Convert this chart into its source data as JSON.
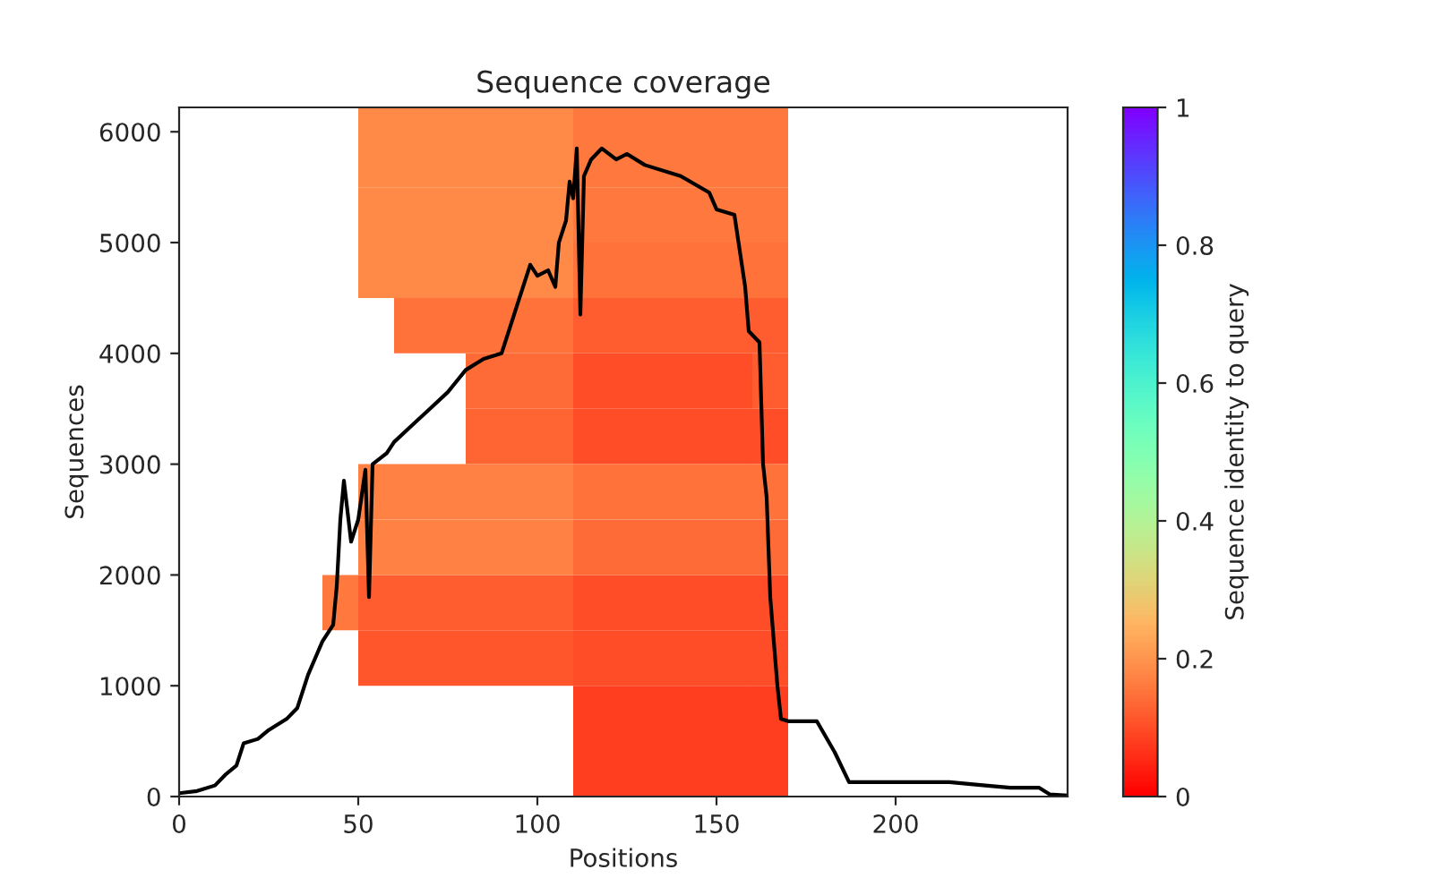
{
  "chart_data": {
    "type": "heatmap",
    "title": "Sequence coverage",
    "xlabel": "Positions",
    "ylabel": "Sequences",
    "clabel": "Sequence identity to query",
    "x": [
      5,
      15,
      25,
      35,
      45,
      55,
      65,
      75,
      85,
      95,
      105,
      115,
      125,
      135,
      145,
      155,
      165,
      175,
      185,
      195,
      205,
      215,
      225,
      235,
      245
    ],
    "y": [
      6110,
      5750,
      5250,
      4750,
      4250,
      3750,
      3250,
      2750,
      2250,
      1750,
      1250,
      750,
      250
    ],
    "cells": [
      [
        null,
        null,
        null,
        null,
        null,
        0.18,
        0.18,
        0.18,
        0.18,
        0.18,
        0.18,
        0.16,
        0.16,
        0.16,
        0.16,
        0.16,
        0.16,
        null,
        null,
        null,
        null,
        null,
        null,
        null,
        null
      ],
      [
        null,
        null,
        null,
        null,
        null,
        0.18,
        0.18,
        0.18,
        0.18,
        0.18,
        0.18,
        0.16,
        0.16,
        0.16,
        0.16,
        0.16,
        0.16,
        null,
        null,
        null,
        null,
        null,
        null,
        null,
        null
      ],
      [
        null,
        null,
        null,
        null,
        null,
        0.18,
        0.18,
        0.18,
        0.18,
        0.18,
        0.18,
        0.16,
        0.16,
        0.16,
        0.16,
        0.16,
        0.16,
        null,
        null,
        null,
        null,
        null,
        null,
        null,
        null
      ],
      [
        null,
        null,
        null,
        null,
        null,
        0.18,
        0.18,
        0.18,
        0.18,
        0.18,
        0.18,
        0.15,
        0.15,
        0.15,
        0.15,
        0.15,
        0.15,
        null,
        null,
        null,
        null,
        null,
        null,
        null,
        null
      ],
      [
        null,
        null,
        null,
        null,
        null,
        null,
        0.15,
        0.15,
        0.15,
        0.15,
        0.15,
        0.12,
        0.12,
        0.12,
        0.12,
        0.12,
        0.12,
        null,
        null,
        null,
        null,
        null,
        null,
        null,
        null
      ],
      [
        null,
        null,
        null,
        null,
        null,
        null,
        null,
        null,
        0.14,
        0.14,
        0.14,
        0.1,
        0.1,
        0.1,
        0.1,
        0.1,
        0.12,
        null,
        null,
        null,
        null,
        null,
        null,
        null,
        null
      ],
      [
        null,
        null,
        null,
        null,
        null,
        null,
        null,
        null,
        0.13,
        0.13,
        0.13,
        0.1,
        0.1,
        0.1,
        0.1,
        0.1,
        0.1,
        null,
        null,
        null,
        null,
        null,
        null,
        null,
        null
      ],
      [
        null,
        null,
        null,
        null,
        null,
        0.17,
        0.17,
        0.17,
        0.17,
        0.17,
        0.17,
        0.15,
        0.15,
        0.15,
        0.15,
        0.15,
        0.15,
        null,
        null,
        null,
        null,
        null,
        null,
        null,
        null
      ],
      [
        null,
        null,
        null,
        null,
        null,
        0.17,
        0.17,
        0.17,
        0.17,
        0.17,
        0.17,
        0.14,
        0.14,
        0.14,
        0.14,
        0.14,
        0.14,
        null,
        null,
        null,
        null,
        null,
        null,
        null,
        null
      ],
      [
        null,
        null,
        null,
        null,
        0.16,
        0.12,
        0.12,
        0.12,
        0.12,
        0.12,
        0.12,
        0.1,
        0.1,
        0.1,
        0.1,
        0.1,
        0.1,
        null,
        null,
        null,
        null,
        null,
        null,
        null,
        null
      ],
      [
        null,
        null,
        null,
        null,
        null,
        0.11,
        0.11,
        0.11,
        0.11,
        0.11,
        0.11,
        0.1,
        0.1,
        0.1,
        0.1,
        0.1,
        0.1,
        null,
        null,
        null,
        null,
        null,
        null,
        null,
        null
      ],
      [
        null,
        null,
        null,
        null,
        null,
        null,
        null,
        null,
        null,
        null,
        null,
        0.08,
        0.08,
        0.08,
        0.08,
        0.08,
        0.08,
        null,
        null,
        null,
        null,
        null,
        null,
        null,
        null
      ],
      [
        null,
        null,
        null,
        null,
        null,
        null,
        null,
        null,
        null,
        null,
        null,
        0.08,
        0.08,
        0.08,
        0.08,
        0.08,
        0.08,
        null,
        null,
        null,
        null,
        null,
        null,
        null,
        null
      ]
    ],
    "clim": [
      0,
      1
    ],
    "cticks": [
      0,
      0.2,
      0.4,
      0.6,
      0.8,
      1
    ],
    "xlim": [
      0,
      248
    ],
    "ylim": [
      0,
      6220
    ],
    "xticks": [
      0,
      50,
      100,
      150,
      200
    ],
    "yticks": [
      0,
      1000,
      2000,
      3000,
      4000,
      5000,
      6000
    ],
    "grid": false,
    "series": [
      {
        "type": "line",
        "color": "#000000",
        "x": [
          0,
          5,
          10,
          13,
          16,
          18,
          22,
          25,
          30,
          33,
          36,
          38,
          40,
          43,
          44,
          45,
          46,
          48,
          50,
          52,
          53,
          54,
          58,
          60,
          65,
          70,
          75,
          80,
          85,
          90,
          92,
          95,
          98,
          100,
          103,
          105,
          106,
          108,
          109,
          110,
          111,
          112,
          113,
          115,
          118,
          122,
          125,
          130,
          140,
          148,
          150,
          155,
          158,
          159,
          162,
          163,
          164,
          165,
          167,
          168,
          170,
          178,
          183,
          187,
          215,
          225,
          232,
          240,
          243,
          248
        ],
        "values": [
          30,
          50,
          100,
          200,
          280,
          480,
          520,
          600,
          700,
          800,
          1100,
          1250,
          1400,
          1550,
          1900,
          2500,
          2850,
          2300,
          2500,
          2950,
          1800,
          3000,
          3100,
          3200,
          3350,
          3500,
          3650,
          3850,
          3950,
          4000,
          4200,
          4500,
          4800,
          4700,
          4750,
          4600,
          5000,
          5200,
          5550,
          5400,
          5850,
          4350,
          5600,
          5750,
          5850,
          5750,
          5800,
          5700,
          5600,
          5450,
          5300,
          5250,
          4600,
          4200,
          4100,
          3000,
          2700,
          1800,
          1000,
          700,
          680,
          680,
          400,
          130,
          130,
          100,
          80,
          80,
          20,
          10
        ]
      }
    ]
  }
}
